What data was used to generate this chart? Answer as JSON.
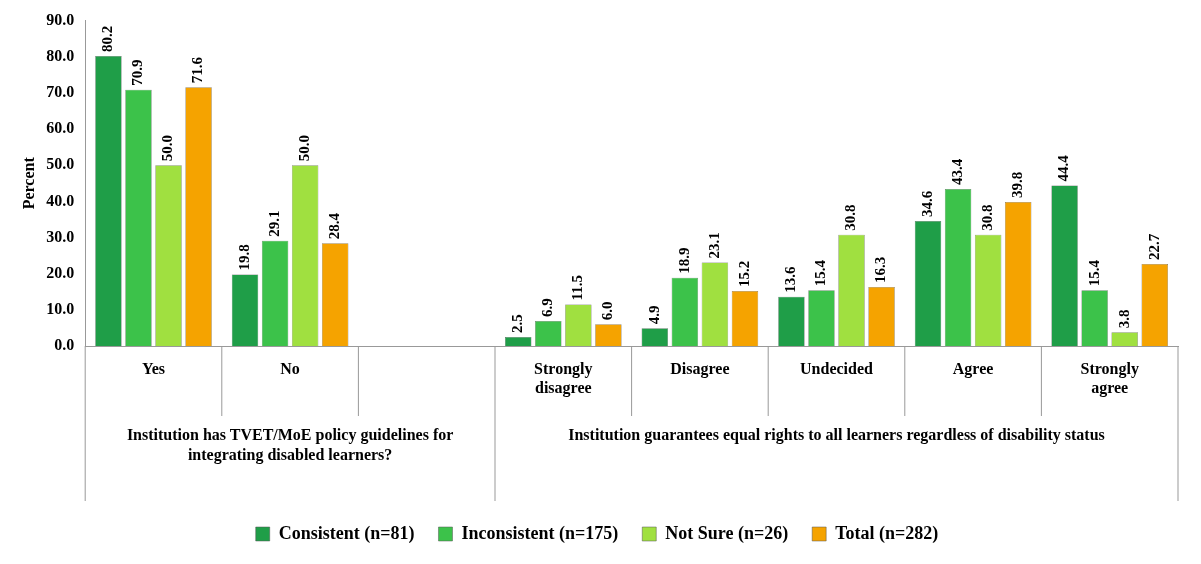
{
  "chart_data": {
    "type": "bar",
    "ylabel": "Percent",
    "categories": [
      "Yes",
      "No",
      null,
      "Strongly disagree",
      "Disagree",
      "Undecided",
      "Agree",
      "Strongly agree"
    ],
    "annotations": [
      "Institution has TVET/MoE policy guidelines for integrating disabled learners?",
      "Institution guarantees equal rights to all learners regardless of disability status"
    ],
    "series": [
      {
        "name": "Consistent (n=81)",
        "color": "#1f9e48",
        "values": [
          80.2,
          19.8,
          null,
          2.5,
          4.9,
          13.6,
          34.6,
          44.4
        ],
        "value_labels": [
          "80.2",
          "19.8",
          null,
          "2.5",
          "4.9",
          "13.6",
          "34.6",
          "44.4"
        ]
      },
      {
        "name": "Inconsistent (n=175)",
        "color": "#3cc24a",
        "values": [
          70.9,
          29.1,
          null,
          6.9,
          18.9,
          15.4,
          43.4,
          15.4
        ],
        "value_labels": [
          "70.9",
          "29.1",
          null,
          "6.9",
          "18.9",
          "15.4",
          "43.4",
          "15.4"
        ]
      },
      {
        "name": "Not Sure (n=26)",
        "color": "#a0e040",
        "values": [
          50.0,
          50.0,
          null,
          11.5,
          23.1,
          30.8,
          30.8,
          3.8
        ],
        "value_labels": [
          "50.0",
          "50.0",
          null,
          "11.5",
          "23.1",
          "30.8",
          "30.8",
          "3.8"
        ]
      },
      {
        "name": "Total (n=282)",
        "color": "#f5a300",
        "values": [
          71.6,
          28.4,
          null,
          6.0,
          15.2,
          16.3,
          39.8,
          22.7
        ],
        "value_labels": [
          "71.6",
          "28.4",
          null,
          "6.0",
          "15.2",
          "16.3",
          "39.8",
          "22.7"
        ]
      }
    ],
    "ylim": [
      0,
      90
    ],
    "yticks": [
      {
        "value": 0,
        "label": "0.0"
      },
      {
        "value": 10,
        "label": "10.0"
      },
      {
        "value": 20,
        "label": "20.0"
      },
      {
        "value": 30,
        "label": "30.0"
      },
      {
        "value": 40,
        "label": "40.0"
      },
      {
        "value": 50,
        "label": "50.0"
      },
      {
        "value": 60,
        "label": "60.0"
      },
      {
        "value": 70,
        "label": "70.0"
      },
      {
        "value": 80,
        "label": "80.0"
      },
      {
        "value": 90,
        "label": "90.0"
      }
    ],
    "grid": false,
    "legend": "bottom"
  }
}
